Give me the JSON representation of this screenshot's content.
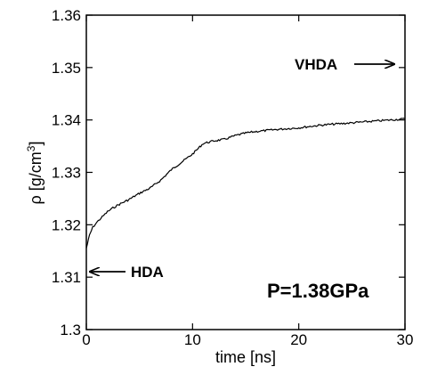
{
  "chart_data": {
    "type": "line",
    "xlabel": "time [ns]",
    "ylabel_main": "ρ [g/cm",
    "ylabel_sup": "3",
    "ylabel_close": "]",
    "xlim": [
      0,
      30
    ],
    "ylim": [
      1.3,
      1.36
    ],
    "x_ticks": [
      0,
      10,
      20,
      30
    ],
    "x_tick_labels": [
      "0",
      "10",
      "20",
      "30"
    ],
    "y_ticks": [
      1.3,
      1.31,
      1.32,
      1.33,
      1.34,
      1.35,
      1.36
    ],
    "y_tick_labels": [
      "1.3",
      "1.31",
      "1.32",
      "1.33",
      "1.34",
      "1.35",
      "1.36"
    ],
    "grid": false,
    "series": [
      {
        "x": [
          0,
          0.3,
          0.6,
          1,
          1.5,
          2,
          2.5,
          3,
          4,
          5,
          6,
          7,
          8,
          9,
          10,
          11,
          12,
          13,
          14,
          15,
          16,
          18,
          20,
          22,
          24,
          26,
          28,
          30
        ],
        "values": [
          1.3155,
          1.318,
          1.3195,
          1.3205,
          1.3215,
          1.3225,
          1.3232,
          1.3238,
          1.3248,
          1.326,
          1.327,
          1.3285,
          1.3305,
          1.332,
          1.3335,
          1.3355,
          1.336,
          1.3363,
          1.337,
          1.3375,
          1.3378,
          1.3382,
          1.3385,
          1.339,
          1.3393,
          1.3396,
          1.3399,
          1.3402
        ]
      }
    ],
    "annotations": {
      "vhda": "VHDA",
      "hda": "HDA",
      "pressure": "P=1.38GPa"
    }
  }
}
